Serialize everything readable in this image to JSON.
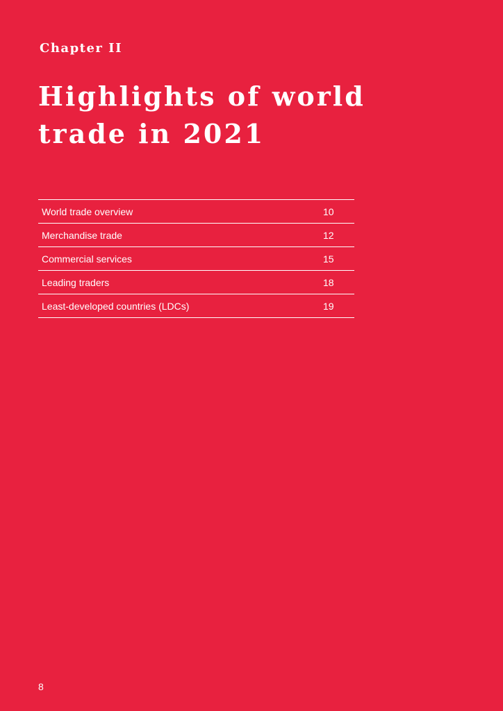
{
  "header": {
    "chapter_label": "Chapter II",
    "title_line1": "Highlights of world",
    "title_line2": "trade in 2021"
  },
  "toc": {
    "items": [
      {
        "title": "World trade overview",
        "page": "10"
      },
      {
        "title": "Merchandise trade",
        "page": "12"
      },
      {
        "title": "Commercial services",
        "page": "15"
      },
      {
        "title": "Leading traders",
        "page": "18"
      },
      {
        "title": "Least-developed countries (LDCs)",
        "page": "19"
      }
    ]
  },
  "footer": {
    "page_number": "8"
  },
  "colors": {
    "background": "#e8213f",
    "text": "#ffffff"
  }
}
